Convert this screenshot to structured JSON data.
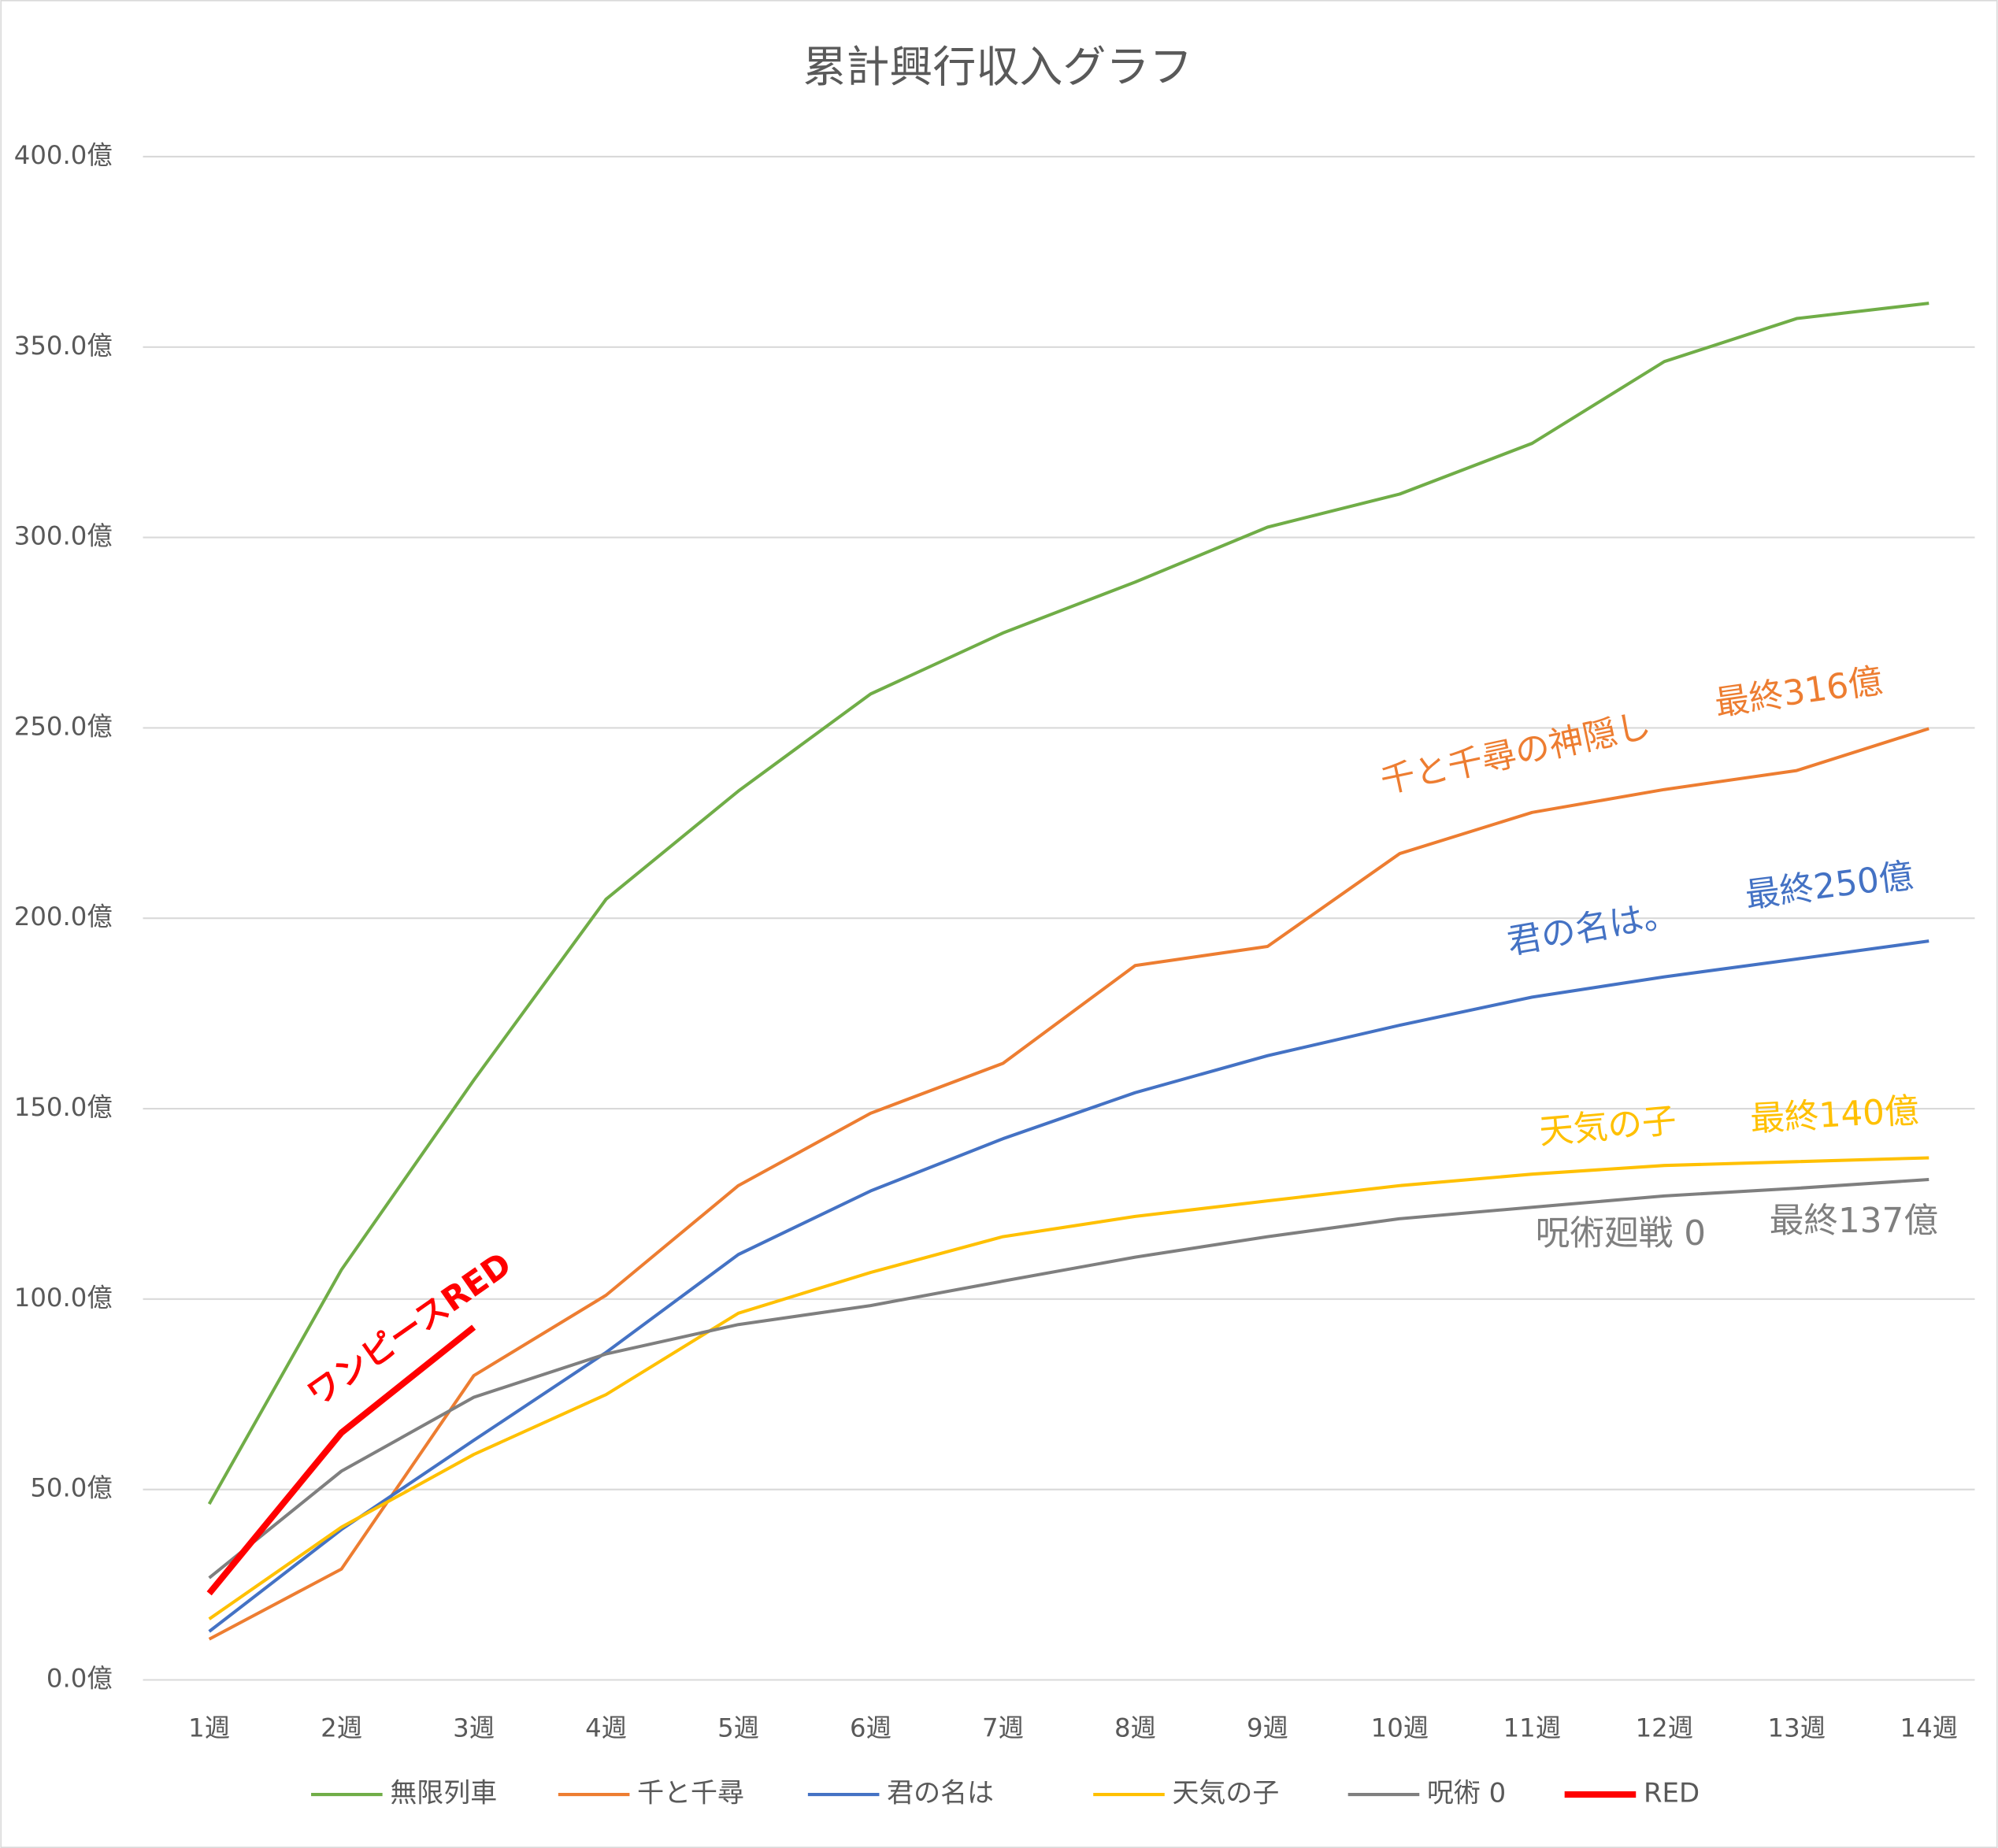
{
  "chart_data": {
    "type": "line",
    "title": "累計興行収入グラフ",
    "categories": [
      "1週",
      "2週",
      "3週",
      "4週",
      "5週",
      "6週",
      "7週",
      "8週",
      "9週",
      "10週",
      "11週",
      "12週",
      "13週",
      "14週"
    ],
    "series": [
      {
        "name": "無限列車",
        "color": "#70ad47",
        "line_width": 2.5,
        "values": [
          46.2,
          107.7,
          157.5,
          205,
          233.4,
          258.9,
          274.9,
          288.3,
          302.7,
          311.4,
          324.7,
          346.2,
          357.5,
          361.5
        ]
      },
      {
        "name": "千と千尋",
        "color": "#ed7d31",
        "line_width": 2.5,
        "values": [
          10.7,
          29.1,
          79.9,
          101,
          129.8,
          148.8,
          161.9,
          187.6,
          192.6,
          217,
          227.8,
          233.8,
          238.8,
          249.8
        ]
      },
      {
        "name": "君の名は",
        "color": "#4472c4",
        "line_width": 2.5,
        "values": [
          12.7,
          39.5,
          62.9,
          86,
          111.7,
          128.4,
          142.1,
          154.2,
          163.9,
          171.9,
          179.3,
          184.6,
          189.3,
          194
        ]
      },
      {
        "name": "天気の子",
        "color": "#ffc000",
        "line_width": 2.5,
        "values": [
          16,
          40.1,
          59.2,
          74.9,
          96.3,
          107,
          116.4,
          121.7,
          125.8,
          129.8,
          132.8,
          135.1,
          136.1,
          137.1
        ]
      },
      {
        "name": "呪術 0",
        "color": "#7f7f7f",
        "line_width": 2.5,
        "values": [
          26.8,
          54.8,
          74.2,
          85.6,
          93.3,
          98.3,
          104.7,
          111,
          116.4,
          121.1,
          124.1,
          127.1,
          129.1,
          131.4
        ]
      },
      {
        "name": "RED",
        "color": "#ff0000",
        "line_width": 5,
        "values": [
          22.7,
          64.9,
          92.6,
          null,
          null,
          null,
          null,
          null,
          null,
          null,
          null,
          null,
          null,
          null
        ]
      }
    ],
    "ylim": [
      0,
      400
    ],
    "yticks": [
      {
        "value": 0,
        "label": "0.0億"
      },
      {
        "value": 50,
        "label": "50.0億"
      },
      {
        "value": 100,
        "label": "100.0億"
      },
      {
        "value": 150,
        "label": "150.0億"
      },
      {
        "value": 200,
        "label": "200.0億"
      },
      {
        "value": 250,
        "label": "250.0億"
      },
      {
        "value": 300,
        "label": "300.0億"
      },
      {
        "value": 350,
        "label": "350.0億"
      },
      {
        "value": 400,
        "label": "400.0億"
      }
    ],
    "grid": true,
    "legend": "bottom",
    "annotations": [
      {
        "text": "ワンピースRED",
        "color": "#ff0000"
      },
      {
        "text": "千と千尋の神隠し",
        "color": "#ed7d31"
      },
      {
        "text": "最終316億",
        "color": "#ed7d31"
      },
      {
        "text": "君の名は。",
        "color": "#4472c4"
      },
      {
        "text": "最終250億",
        "color": "#4472c4"
      },
      {
        "text": "天気の子",
        "color": "#ffc000"
      },
      {
        "text": "最終140億",
        "color": "#ffc000"
      },
      {
        "text": "呪術廻戦 0",
        "color": "#7f7f7f"
      },
      {
        "text": "最終137億",
        "color": "#7f7f7f"
      }
    ]
  }
}
